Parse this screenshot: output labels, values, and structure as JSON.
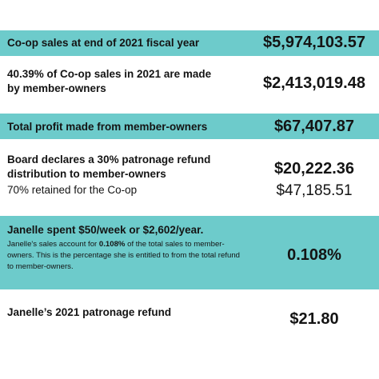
{
  "rows": [
    {
      "label": "Co-op sales at end of 2021 fiscal year",
      "value": "$5,974,103.57"
    },
    {
      "label_line1": "40.39% of Co-op sales in 2021 are made",
      "label_line2": "by member-owners",
      "value": "$2,413,019.48"
    },
    {
      "label": "Total profit made from member-owners",
      "value": "$67,407.87"
    },
    {
      "label_line1": "Board declares a 30% patronage refund",
      "label_line2": "distribution to member-owners",
      "sublabel": "70% retained for the Co-op",
      "value": "$20,222.36",
      "value2": "$47,185.51"
    },
    {
      "label": "Janelle spent $50/week or $2,602/year.",
      "note_before": "Janelle's sales account for ",
      "note_bold": "0.108%",
      "note_after": " of the total sales to member-owners. This is the percentage she is entitled to from the total refund to member-owners.",
      "value": "0.108%"
    },
    {
      "label": "Janelle’s 2021 patronage refund",
      "value": "$21.80"
    }
  ],
  "colors": {
    "teal": "#6dcbcb",
    "text": "#141414"
  }
}
